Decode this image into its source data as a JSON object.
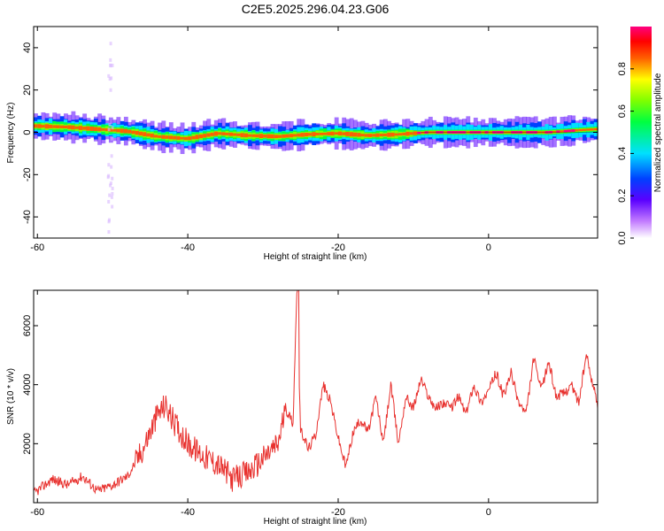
{
  "title": "C2E5.2025.296.04.23.G06",
  "chart_data": [
    {
      "type": "heatmap",
      "xlabel": "Height of straight line (km)",
      "ylabel": "Frequency (Hz)",
      "xlim": [
        -60.5,
        14.5
      ],
      "ylim": [
        -50,
        50
      ],
      "x_ticks": [
        -60,
        -40,
        -20,
        0
      ],
      "y_ticks": [
        40,
        20,
        0,
        -20,
        -40
      ],
      "colorbar": {
        "label": "Normalized spectral amplitude",
        "ticks": [
          "0.0",
          "0.2",
          "0.4",
          "0.6",
          "0.8"
        ],
        "range": [
          0,
          1
        ]
      },
      "ridge": {
        "x": [
          -60.5,
          -56,
          -52,
          -48,
          -44,
          -40,
          -36,
          -32,
          -28,
          -24,
          -20,
          -16,
          -12,
          -8,
          -4,
          0,
          4,
          8,
          12,
          14.5
        ],
        "frequency": [
          3,
          2.5,
          1.5,
          0.5,
          -2,
          -3,
          -0.5,
          -1.5,
          -2,
          -1,
          -0.5,
          -1.5,
          -1,
          0,
          0,
          0,
          0,
          0,
          1,
          1.5
        ]
      },
      "grid": false
    },
    {
      "type": "line",
      "xlabel": "Height of straight line (km)",
      "ylabel": "SNR (10 * v/v)",
      "xlim": [
        -60.5,
        14.5
      ],
      "ylim": [
        0,
        7200
      ],
      "x_ticks": [
        -60,
        -40,
        -20,
        0
      ],
      "y_ticks": [
        2000,
        4000,
        6000
      ],
      "series": [
        {
          "color": "#e8312e",
          "x": [
            -60.5,
            -58,
            -56,
            -54,
            -52,
            -50,
            -48,
            -46,
            -44,
            -43,
            -42,
            -40,
            -38,
            -36,
            -34,
            -32,
            -30,
            -28,
            -27,
            -26,
            -25.5,
            -25,
            -24.5,
            -24,
            -23,
            -22,
            -21,
            -20,
            -19,
            -18,
            -17,
            -16,
            -15,
            -14,
            -13,
            -12,
            -11,
            -10,
            -9,
            -8,
            -7,
            -6,
            -5,
            -4,
            -3,
            -2,
            -1,
            0,
            1,
            2,
            3,
            4,
            5,
            6,
            7,
            8,
            9,
            10,
            11,
            12,
            13,
            14.5
          ],
          "values": [
            300,
            800,
            600,
            900,
            400,
            600,
            900,
            1800,
            3000,
            3300,
            2800,
            2000,
            1600,
            1300,
            800,
            1000,
            1500,
            2000,
            3200,
            2700,
            7200,
            2400,
            2200,
            1800,
            2300,
            4000,
            3400,
            2200,
            1200,
            2400,
            2800,
            2400,
            3600,
            2000,
            4000,
            2000,
            3600,
            3200,
            4200,
            3600,
            3200,
            3400,
            3200,
            3600,
            3000,
            4000,
            3400,
            3800,
            4400,
            3600,
            4400,
            3400,
            3000,
            4900,
            3800,
            4800,
            3600,
            3700,
            4000,
            3400,
            5000,
            3300
          ]
        }
      ],
      "grid": false
    }
  ]
}
